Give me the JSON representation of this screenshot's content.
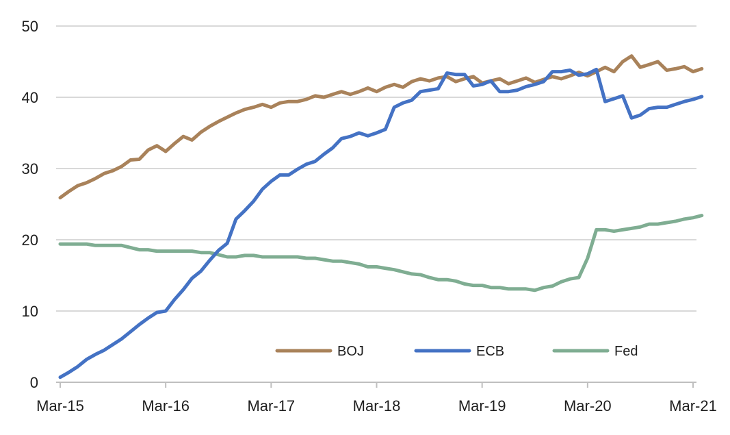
{
  "chart_data": {
    "type": "line",
    "title": "",
    "xlabel": "",
    "ylabel": "",
    "ylim": [
      0,
      50
    ],
    "y_ticks": [
      0,
      10,
      20,
      30,
      40,
      50
    ],
    "x_tick_labels": [
      "Mar-15",
      "Mar-16",
      "Mar-17",
      "Mar-18",
      "Mar-19",
      "Mar-20",
      "Mar-21"
    ],
    "x_unit": "months since Mar-15",
    "grid": true,
    "legend_position": "bottom-right",
    "series": [
      {
        "name": "BOJ",
        "color": "#a9825a",
        "x": [
          0,
          1,
          2,
          3,
          4,
          5,
          6,
          7,
          8,
          9,
          10,
          11,
          12,
          13,
          14,
          15,
          16,
          17,
          18,
          19,
          20,
          21,
          22,
          23,
          24,
          25,
          26,
          27,
          28,
          29,
          30,
          31,
          32,
          33,
          34,
          35,
          36,
          37,
          38,
          39,
          40,
          41,
          42,
          43,
          44,
          45,
          46,
          47,
          48,
          49,
          50,
          51,
          52,
          53,
          54,
          55,
          56,
          57,
          58,
          59,
          60,
          61,
          62,
          63,
          64,
          65,
          66,
          67,
          68,
          69,
          70,
          71,
          72,
          73
        ],
        "values": [
          25.9,
          26.8,
          27.6,
          28.0,
          28.6,
          29.3,
          29.7,
          30.3,
          31.2,
          31.3,
          32.6,
          33.2,
          32.4,
          33.5,
          34.5,
          34.0,
          35.1,
          35.9,
          36.6,
          37.2,
          37.8,
          38.3,
          38.6,
          39.0,
          38.6,
          39.2,
          39.4,
          39.4,
          39.7,
          40.2,
          40.0,
          40.4,
          40.8,
          40.4,
          40.8,
          41.3,
          40.8,
          41.4,
          41.8,
          41.4,
          42.2,
          42.6,
          42.3,
          42.7,
          42.9,
          42.2,
          42.6,
          42.9,
          42.0,
          42.3,
          42.6,
          41.9,
          42.3,
          42.7,
          42.1,
          42.5,
          42.9,
          42.6,
          43.0,
          43.5,
          43.0,
          43.6,
          44.2,
          43.6,
          45.0,
          45.8,
          44.2,
          44.6,
          45.0,
          43.8,
          44.0,
          44.3,
          43.6,
          44.0
        ]
      },
      {
        "name": "ECB",
        "color": "#4472c4",
        "x": [
          0,
          1,
          2,
          3,
          4,
          5,
          6,
          7,
          8,
          9,
          10,
          11,
          12,
          13,
          14,
          15,
          16,
          17,
          18,
          19,
          20,
          21,
          22,
          23,
          24,
          25,
          26,
          27,
          28,
          29,
          30,
          31,
          32,
          33,
          34,
          35,
          36,
          37,
          38,
          39,
          40,
          41,
          42,
          43,
          44,
          45,
          46,
          47,
          48,
          49,
          50,
          51,
          52,
          53,
          54,
          55,
          56,
          57,
          58,
          59,
          60,
          61,
          62,
          63,
          64,
          65,
          66,
          67,
          68,
          69,
          70,
          71,
          72,
          73
        ],
        "values": [
          0.7,
          1.4,
          2.2,
          3.2,
          3.9,
          4.5,
          5.3,
          6.1,
          7.1,
          8.1,
          9.0,
          9.8,
          10.0,
          11.6,
          13.0,
          14.6,
          15.6,
          17.1,
          18.5,
          19.5,
          22.9,
          24.1,
          25.4,
          27.1,
          28.2,
          29.1,
          29.1,
          29.9,
          30.6,
          31.0,
          32.0,
          32.9,
          34.2,
          34.5,
          35.0,
          34.6,
          35.0,
          35.5,
          38.6,
          39.2,
          39.6,
          40.8,
          41.0,
          41.2,
          43.4,
          43.2,
          43.2,
          41.6,
          41.8,
          42.3,
          40.8,
          40.8,
          41.0,
          41.5,
          41.8,
          42.2,
          43.6,
          43.6,
          43.8,
          43.1,
          43.3,
          43.9,
          39.4,
          39.8,
          40.2,
          37.1,
          37.5,
          38.4,
          38.6,
          38.6,
          39.0,
          39.4,
          39.7,
          40.1
        ]
      },
      {
        "name": "Fed",
        "color": "#7fad92",
        "x": [
          0,
          1,
          2,
          3,
          4,
          5,
          6,
          7,
          8,
          9,
          10,
          11,
          12,
          13,
          14,
          15,
          16,
          17,
          18,
          19,
          20,
          21,
          22,
          23,
          24,
          25,
          26,
          27,
          28,
          29,
          30,
          31,
          32,
          33,
          34,
          35,
          36,
          37,
          38,
          39,
          40,
          41,
          42,
          43,
          44,
          45,
          46,
          47,
          48,
          49,
          50,
          51,
          52,
          53,
          54,
          55,
          56,
          57,
          58,
          59,
          60,
          61,
          62,
          63,
          64,
          65,
          66,
          67,
          68,
          69,
          70,
          71,
          72,
          73
        ],
        "values": [
          19.4,
          19.4,
          19.4,
          19.4,
          19.2,
          19.2,
          19.2,
          19.2,
          18.9,
          18.6,
          18.6,
          18.4,
          18.4,
          18.4,
          18.4,
          18.4,
          18.2,
          18.2,
          17.9,
          17.6,
          17.6,
          17.8,
          17.8,
          17.6,
          17.6,
          17.6,
          17.6,
          17.6,
          17.4,
          17.4,
          17.2,
          17.0,
          17.0,
          16.8,
          16.6,
          16.2,
          16.2,
          16.0,
          15.8,
          15.5,
          15.2,
          15.1,
          14.7,
          14.4,
          14.4,
          14.2,
          13.8,
          13.6,
          13.6,
          13.3,
          13.3,
          13.1,
          13.1,
          13.1,
          12.9,
          13.3,
          13.5,
          14.1,
          14.5,
          14.7,
          17.4,
          21.4,
          21.4,
          21.2,
          21.4,
          21.6,
          21.8,
          22.2,
          22.2,
          22.4,
          22.6,
          22.9,
          23.1,
          23.4
        ]
      }
    ]
  }
}
